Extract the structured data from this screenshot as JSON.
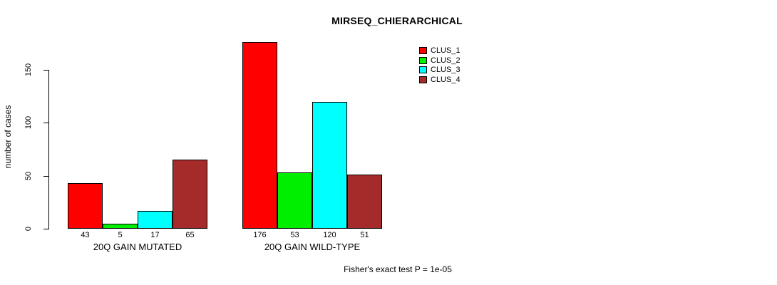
{
  "chart_data": {
    "type": "bar",
    "title": "MIRSEQ_CHIERARCHICAL",
    "ylabel": "number of cases",
    "xlabel": "",
    "categories": [
      "20Q GAIN MUTATED",
      "20Q GAIN WILD-TYPE"
    ],
    "series": [
      {
        "name": "CLUS_1",
        "color": "#FF0000",
        "values": [
          43,
          176
        ]
      },
      {
        "name": "CLUS_2",
        "color": "#00EE00",
        "values": [
          5,
          53
        ]
      },
      {
        "name": "CLUS_3",
        "color": "#00FFFF",
        "values": [
          17,
          120
        ]
      },
      {
        "name": "CLUS_4",
        "color": "#A52A2A",
        "values": [
          65,
          51
        ]
      }
    ],
    "yticks": [
      0,
      50,
      100,
      150
    ],
    "ylim": [
      0,
      176
    ],
    "grid": false,
    "legend_position": "top-right",
    "bar_value_labels_shown": true,
    "annotation": "Fisher's exact test P = 1e-05"
  },
  "colors": {
    "axis": "#000000",
    "bar_border": "#000000",
    "background": "#FFFFFF"
  }
}
